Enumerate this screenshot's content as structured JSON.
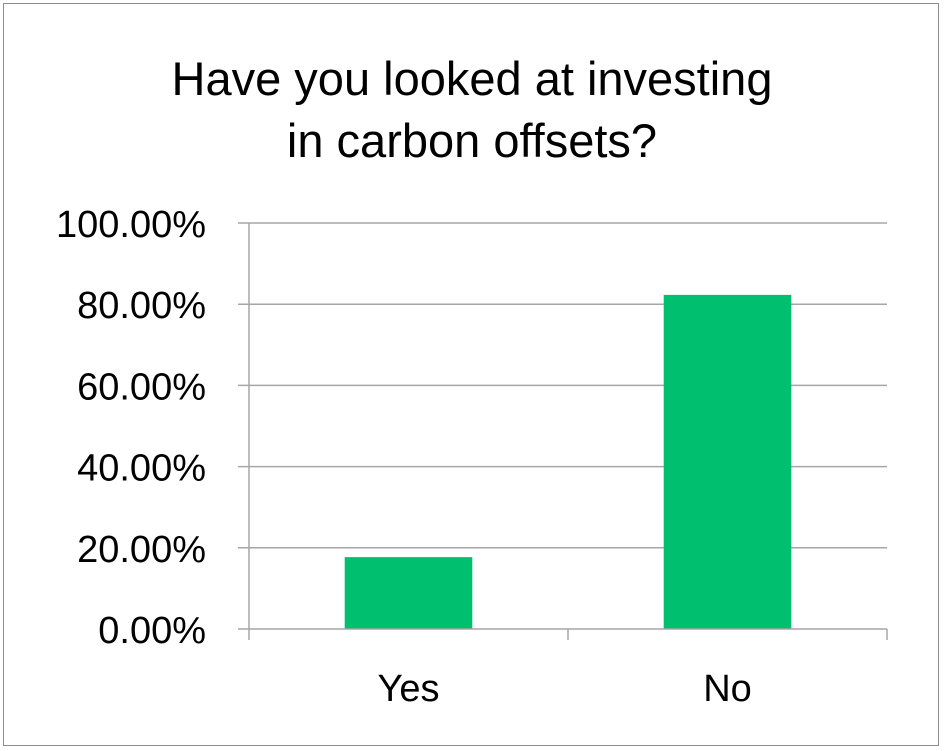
{
  "chart_data": {
    "type": "bar",
    "title_lines": [
      "Have you looked at investing",
      "in carbon offsets?"
    ],
    "categories": [
      "Yes",
      "No"
    ],
    "values": [
      17.7,
      82.3
    ],
    "ylim": [
      0,
      100
    ],
    "yticks": [
      0,
      20,
      40,
      60,
      80,
      100
    ],
    "ytick_labels": [
      "0.00%",
      "20.00%",
      "40.00%",
      "60.00%",
      "80.00%",
      "100.00%"
    ],
    "xlabel": "",
    "ylabel": "",
    "grid": true,
    "legend": "none",
    "bar_color": "#00bf6f",
    "gridline_color": "#a6a6a6"
  }
}
